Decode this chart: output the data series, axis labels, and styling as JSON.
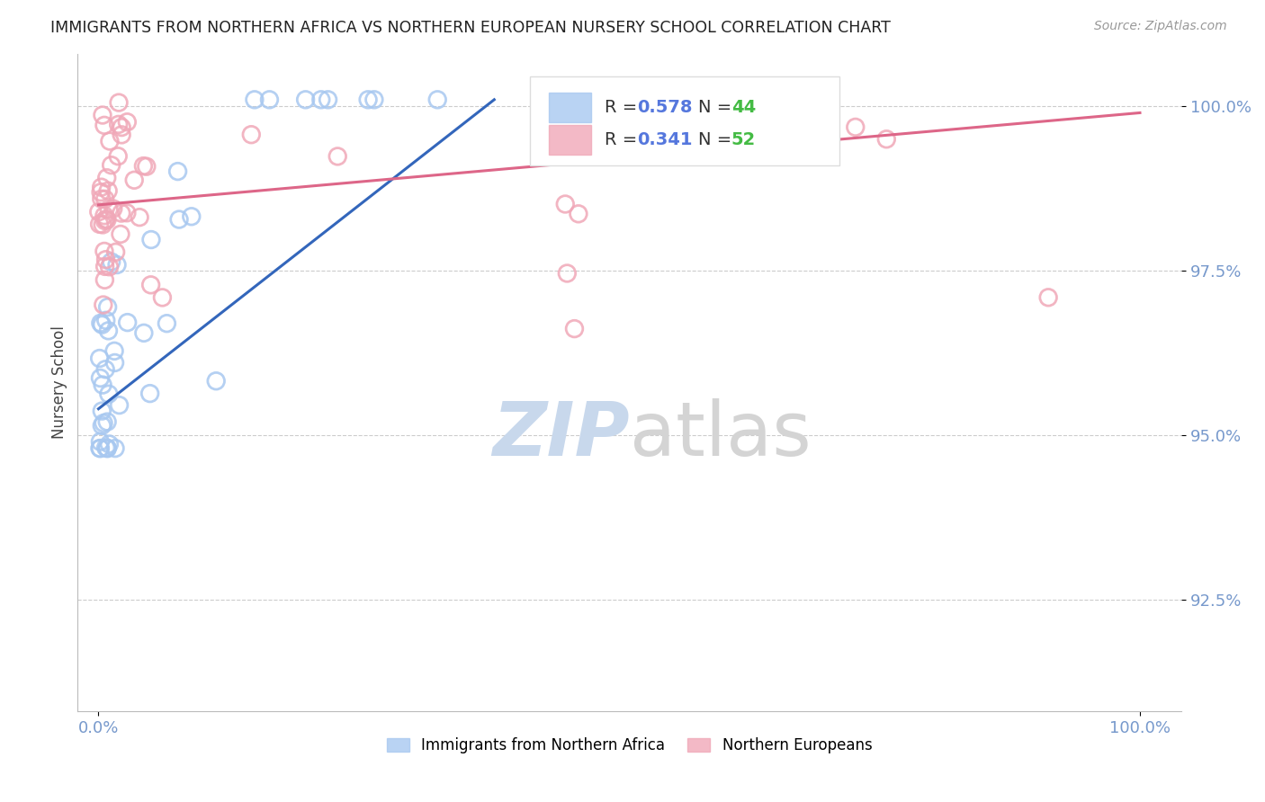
{
  "title": "IMMIGRANTS FROM NORTHERN AFRICA VS NORTHERN EUROPEAN NURSERY SCHOOL CORRELATION CHART",
  "source": "Source: ZipAtlas.com",
  "ylabel": "Nursery School",
  "blue_R": 0.578,
  "blue_N": 44,
  "pink_R": 0.341,
  "pink_N": 52,
  "blue_color": "#A8C8F0",
  "pink_color": "#F0A8B8",
  "blue_line_color": "#3366BB",
  "pink_line_color": "#DD6688",
  "legend_R_color": "#5577DD",
  "legend_N_color": "#44BB44",
  "background_color": "#FFFFFF",
  "watermark_color": "#C8D8EC",
  "ytick_color": "#7799CC",
  "xtick_color": "#7799CC",
  "ytick_vals": [
    0.925,
    0.95,
    0.975,
    1.0
  ],
  "ytick_labels": [
    "92.5%",
    "95.0%",
    "97.5%",
    "100.0%"
  ],
  "xtick_vals": [
    0.0,
    1.0
  ],
  "xtick_labels": [
    "0.0%",
    "100.0%"
  ],
  "xlim": [
    -0.02,
    1.04
  ],
  "ylim": [
    0.908,
    1.008
  ],
  "blue_line_x0": 0.0,
  "blue_line_y0": 0.954,
  "blue_line_x1": 0.38,
  "blue_line_y1": 1.001,
  "pink_line_x0": 0.0,
  "pink_line_y0": 0.985,
  "pink_line_x1": 1.0,
  "pink_line_y1": 0.999
}
